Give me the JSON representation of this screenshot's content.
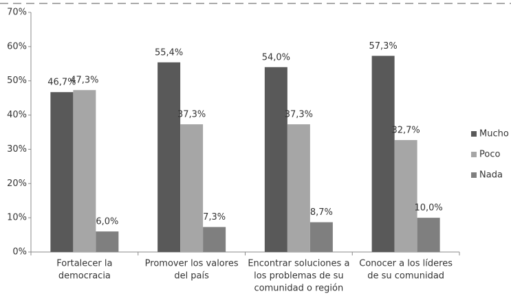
{
  "chart_data": {
    "type": "bar",
    "categories": [
      [
        "Fortalecer la",
        "democracia"
      ],
      [
        "Promover los valores",
        "del país"
      ],
      [
        "Encontrar soluciones a",
        "los problemas de su",
        "comunidad o región"
      ],
      [
        "Conocer a los líderes",
        "de su comunidad"
      ]
    ],
    "series": [
      {
        "name": "Mucho",
        "color": "#595959",
        "values": [
          46.7,
          55.4,
          54.0,
          57.3
        ],
        "value_labels": [
          "46,7%",
          "55,4%",
          "54,0%",
          "57,3%"
        ]
      },
      {
        "name": "Poco",
        "color": "#a6a6a6",
        "values": [
          47.3,
          37.3,
          37.3,
          32.7
        ],
        "value_labels": [
          "47,3%",
          "37,3%",
          "37,3%",
          "32,7%"
        ]
      },
      {
        "name": "Nada",
        "color": "#7f7f7f",
        "values": [
          6.0,
          7.3,
          8.7,
          10.0
        ],
        "value_labels": [
          "6,0%",
          "7,3%",
          "8,7%",
          "10,0%"
        ]
      }
    ],
    "ylim": [
      0,
      70
    ],
    "yticks": [
      {
        "value": 0,
        "label": "0%"
      },
      {
        "value": 10,
        "label": "10%"
      },
      {
        "value": 20,
        "label": "20%"
      },
      {
        "value": 30,
        "label": "30%"
      },
      {
        "value": 40,
        "label": "40%"
      },
      {
        "value": 50,
        "label": "50%"
      },
      {
        "value": 60,
        "label": "60%"
      },
      {
        "value": 70,
        "label": "70%"
      }
    ],
    "legend": "right",
    "grid": false
  }
}
